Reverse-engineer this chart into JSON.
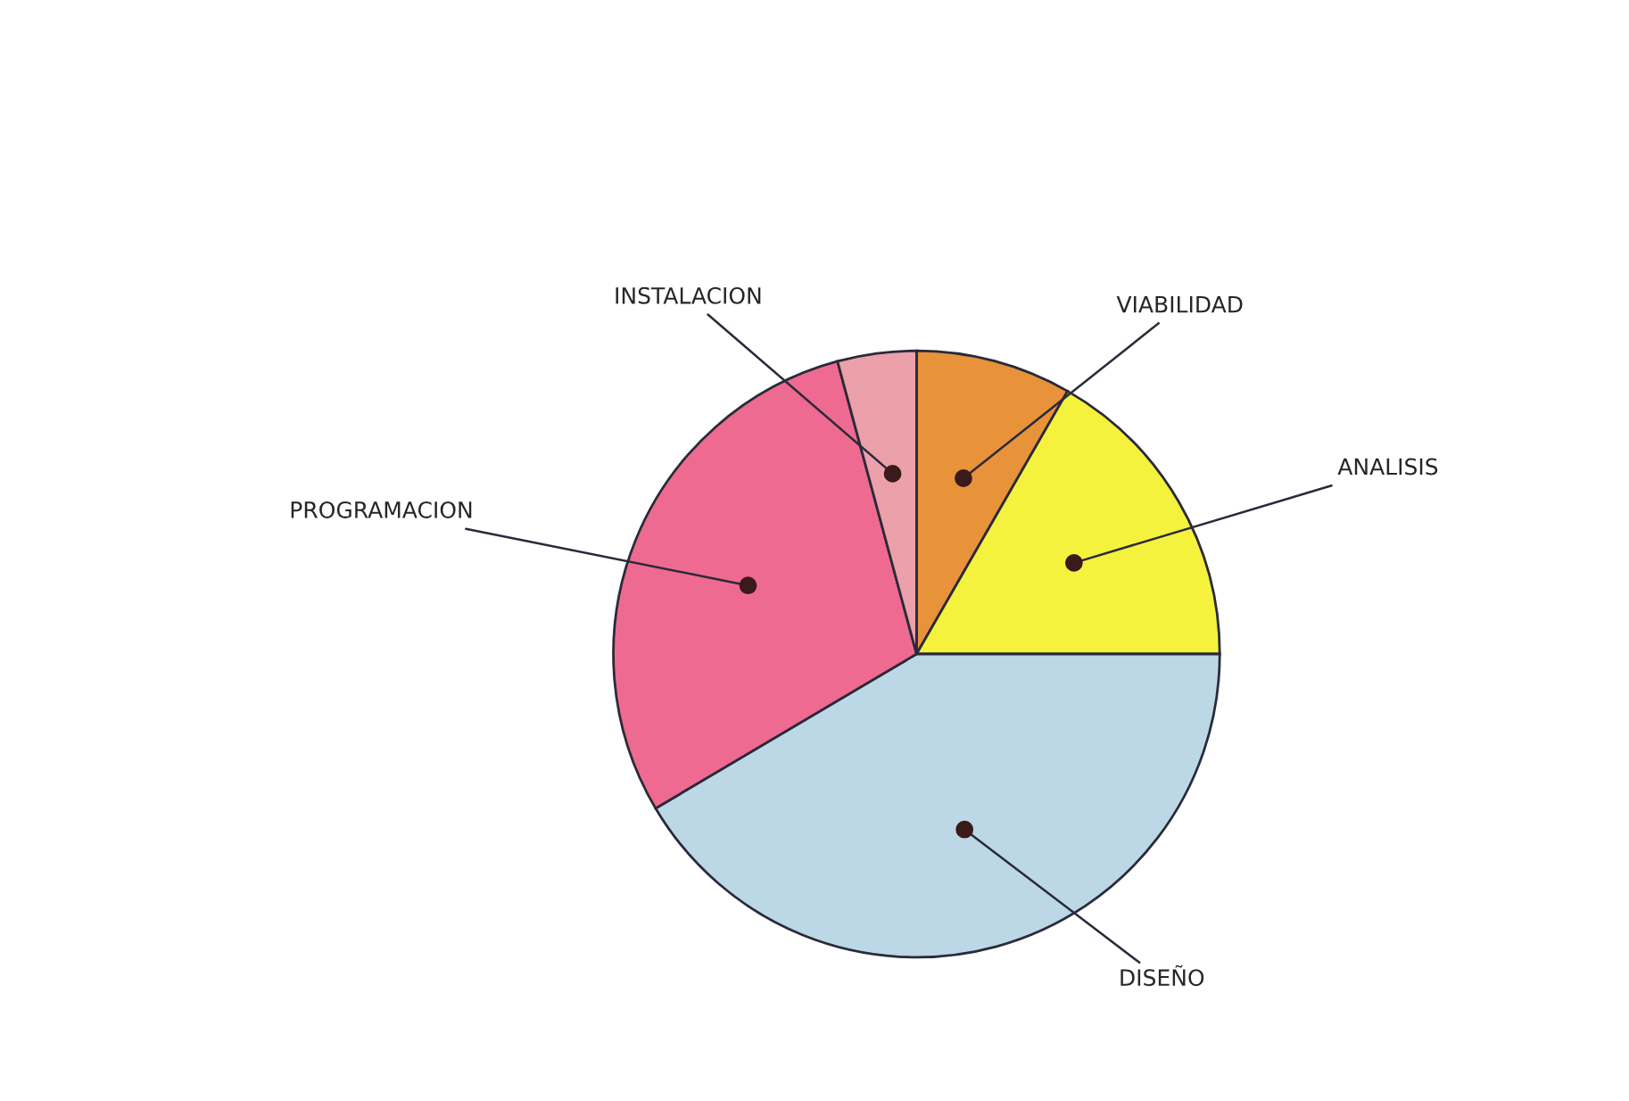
{
  "chart_data": {
    "type": "pie",
    "categories": [
      "VIABILIDAD",
      "ANALISIS",
      "DISEÑO",
      "PROGRAMACION",
      "INSTALACION"
    ],
    "values": [
      8.3,
      16.7,
      41.5,
      29.3,
      4.2
    ],
    "colors": [
      "#e8923a",
      "#f5f23e",
      "#bcd8e6",
      "#ef6a90",
      "#eba0aa"
    ],
    "legend": false
  }
}
